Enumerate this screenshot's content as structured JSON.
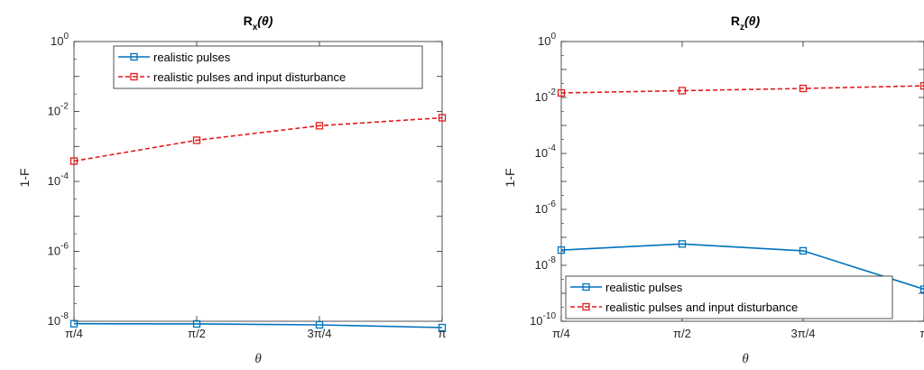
{
  "chart_data": [
    {
      "type": "line",
      "title": "R_x(θ)",
      "title_main": "R",
      "title_sub": "x",
      "title_arg": "(θ)",
      "xlabel": "θ",
      "ylabel": "1-F",
      "yscale": "log",
      "ylim": [
        1e-08,
        1
      ],
      "categories": [
        "π/4",
        "π/2",
        "3π/4",
        "π"
      ],
      "y_ticks": [
        {
          "base": "10",
          "exp": "-8",
          "value": 1e-08
        },
        {
          "base": "10",
          "exp": "-6",
          "value": 1e-06
        },
        {
          "base": "10",
          "exp": "-4",
          "value": 0.0001
        },
        {
          "base": "10",
          "exp": "-2",
          "value": 0.01
        },
        {
          "base": "10",
          "exp": "0",
          "value": 1
        }
      ],
      "series": [
        {
          "name": "realistic pulses",
          "color": "#0072BD",
          "style": "solid",
          "values": [
            8.5e-09,
            8.4e-09,
            7.9e-09,
            6.6e-09
          ]
        },
        {
          "name": "realistic pulses and input disturbance",
          "color": "#E41A1C",
          "style": "dashed",
          "values": [
            0.00038,
            0.0015,
            0.0039,
            0.0066
          ]
        }
      ],
      "legend_position": "top"
    },
    {
      "type": "line",
      "title": "R_z(θ)",
      "title_main": "R",
      "title_sub": "z",
      "title_arg": "(θ)",
      "xlabel": "θ",
      "ylabel": "1-F",
      "yscale": "log",
      "ylim": [
        1e-10,
        1
      ],
      "categories": [
        "π/4",
        "π/2",
        "3π/4",
        "π"
      ],
      "y_ticks": [
        {
          "base": "10",
          "exp": "-10",
          "value": 1e-10
        },
        {
          "base": "10",
          "exp": "-8",
          "value": 1e-08
        },
        {
          "base": "10",
          "exp": "-6",
          "value": 1e-06
        },
        {
          "base": "10",
          "exp": "-4",
          "value": 0.0001
        },
        {
          "base": "10",
          "exp": "-2",
          "value": 0.01
        },
        {
          "base": "10",
          "exp": "0",
          "value": 1
        }
      ],
      "series": [
        {
          "name": "realistic pulses",
          "color": "#0072BD",
          "style": "solid",
          "values": [
            3.5e-08,
            5.8e-08,
            3.3e-08,
            1.4e-09
          ]
        },
        {
          "name": "realistic pulses and input disturbance",
          "color": "#E41A1C",
          "style": "dashed",
          "values": [
            0.0145,
            0.0175,
            0.021,
            0.026
          ]
        }
      ],
      "legend_position": "bottom"
    }
  ]
}
